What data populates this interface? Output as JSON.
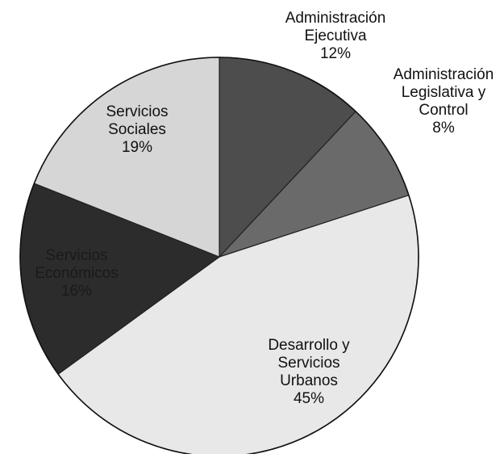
{
  "chart_data": {
    "type": "pie",
    "slices": [
      {
        "label_lines": [
          "Administración",
          "Ejecutiva",
          "12%"
        ],
        "value": 12,
        "color": "#4d4d4d"
      },
      {
        "label_lines": [
          "Administración",
          "Legislativa y",
          "Control",
          "8%"
        ],
        "value": 8,
        "color": "#6a6a6a"
      },
      {
        "label_lines": [
          "Desarrollo y",
          "Servicios",
          "Urbanos",
          "45%"
        ],
        "value": 45,
        "color": "#e8e8e8"
      },
      {
        "label_lines": [
          "Servicios",
          "Económicos",
          "16%"
        ],
        "value": 16,
        "color": "#2c2c2c"
      },
      {
        "label_lines": [
          "Servicios",
          "Sociales",
          "19%"
        ],
        "value": 19,
        "color": "#d6d6d6"
      }
    ],
    "start_angle_deg": 0,
    "direction": "clockwise",
    "legend": "none"
  }
}
